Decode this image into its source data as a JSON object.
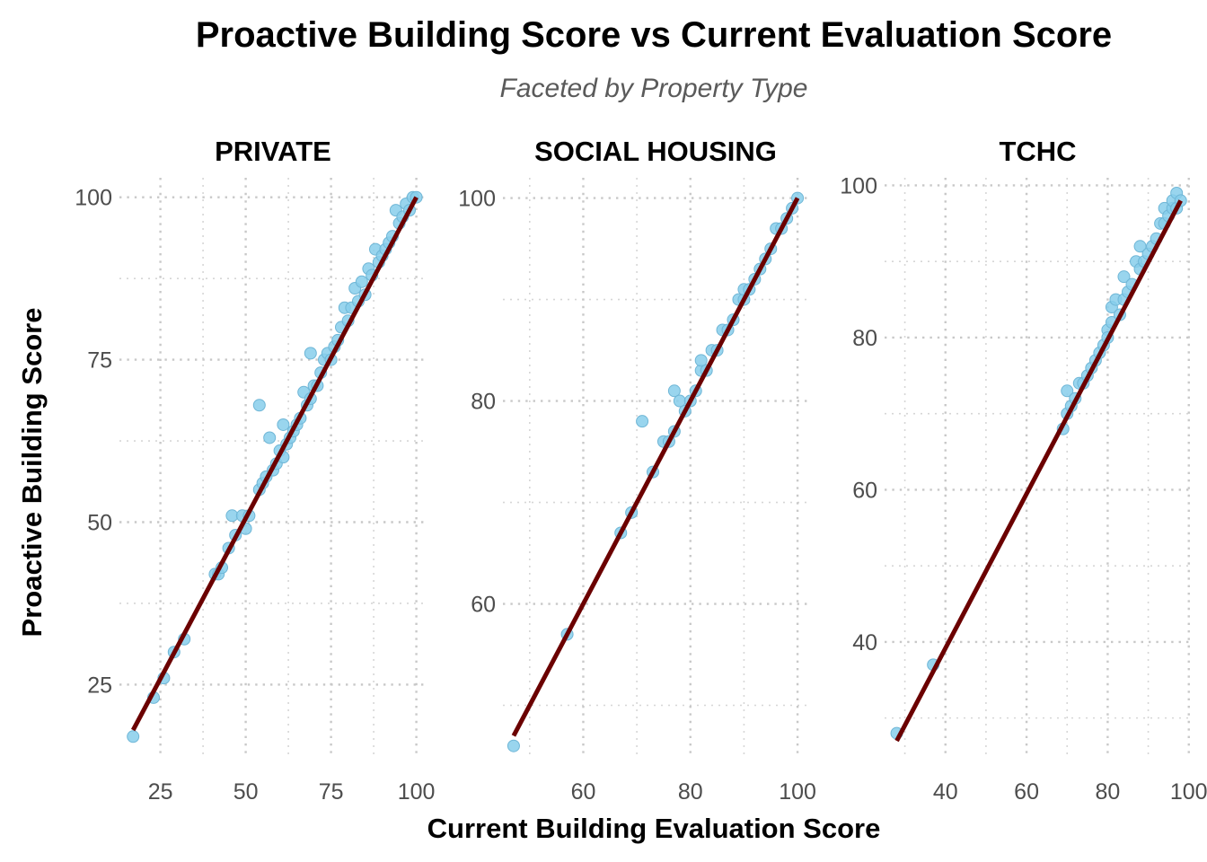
{
  "chart_data": {
    "type": "scatter",
    "title": "Proactive Building Score vs Current Evaluation Score",
    "subtitle": "Faceted by Property Type",
    "xlabel": "Current Building Evaluation Score",
    "ylabel": "Proactive Building Score",
    "grid": true,
    "colors": {
      "points": "#87CEEB",
      "fit_line": "#6b0000"
    },
    "facets": [
      {
        "name": "PRIVATE",
        "xlim": [
          13,
          103
        ],
        "ylim": [
          14,
          103
        ],
        "x_ticks": [
          25,
          50,
          75,
          100
        ],
        "y_ticks": [
          25,
          50,
          75,
          100
        ],
        "fit_line": [
          [
            17,
            18
          ],
          [
            100,
            100
          ]
        ],
        "points": [
          [
            17,
            17
          ],
          [
            23,
            23
          ],
          [
            26,
            26
          ],
          [
            29,
            30
          ],
          [
            32,
            32
          ],
          [
            41,
            42
          ],
          [
            42,
            42
          ],
          [
            43,
            43
          ],
          [
            45,
            46
          ],
          [
            46,
            51
          ],
          [
            47,
            48
          ],
          [
            49,
            51
          ],
          [
            50,
            49
          ],
          [
            51,
            51
          ],
          [
            54,
            68
          ],
          [
            54,
            55
          ],
          [
            55,
            56
          ],
          [
            56,
            57
          ],
          [
            57,
            63
          ],
          [
            58,
            58
          ],
          [
            59,
            59
          ],
          [
            60,
            61
          ],
          [
            61,
            65
          ],
          [
            61,
            60
          ],
          [
            62,
            62
          ],
          [
            63,
            63
          ],
          [
            64,
            64
          ],
          [
            65,
            65
          ],
          [
            66,
            66
          ],
          [
            67,
            70
          ],
          [
            68,
            68
          ],
          [
            69,
            76
          ],
          [
            69,
            69
          ],
          [
            70,
            71
          ],
          [
            71,
            71
          ],
          [
            72,
            73
          ],
          [
            73,
            75
          ],
          [
            74,
            76
          ],
          [
            75,
            75
          ],
          [
            76,
            77
          ],
          [
            77,
            78
          ],
          [
            78,
            80
          ],
          [
            79,
            83
          ],
          [
            80,
            81
          ],
          [
            81,
            83
          ],
          [
            82,
            86
          ],
          [
            83,
            84
          ],
          [
            84,
            87
          ],
          [
            85,
            85
          ],
          [
            86,
            89
          ],
          [
            87,
            88
          ],
          [
            88,
            92
          ],
          [
            89,
            90
          ],
          [
            90,
            91
          ],
          [
            91,
            92
          ],
          [
            92,
            93
          ],
          [
            93,
            94
          ],
          [
            94,
            98
          ],
          [
            95,
            96
          ],
          [
            96,
            97
          ],
          [
            97,
            99
          ],
          [
            98,
            98
          ],
          [
            99,
            100
          ],
          [
            100,
            100
          ]
        ]
      },
      {
        "name": "SOCIAL HOUSING",
        "xlim": [
          45,
          102
        ],
        "ylim": [
          45,
          102
        ],
        "x_ticks": [
          60,
          80,
          100
        ],
        "y_ticks": [
          60,
          80,
          100
        ],
        "fit_line": [
          [
            47,
            47
          ],
          [
            100,
            100
          ]
        ],
        "points": [
          [
            47,
            46
          ],
          [
            57,
            57
          ],
          [
            67,
            67
          ],
          [
            69,
            69
          ],
          [
            71,
            78
          ],
          [
            73,
            73
          ],
          [
            75,
            76
          ],
          [
            76,
            76
          ],
          [
            77,
            77
          ],
          [
            77,
            81
          ],
          [
            78,
            80
          ],
          [
            79,
            79
          ],
          [
            80,
            80
          ],
          [
            81,
            81
          ],
          [
            82,
            83
          ],
          [
            82,
            84
          ],
          [
            83,
            83
          ],
          [
            84,
            85
          ],
          [
            85,
            85
          ],
          [
            86,
            87
          ],
          [
            87,
            87
          ],
          [
            88,
            88
          ],
          [
            89,
            90
          ],
          [
            90,
            90
          ],
          [
            90,
            91
          ],
          [
            91,
            91
          ],
          [
            92,
            92
          ],
          [
            93,
            93
          ],
          [
            94,
            94
          ],
          [
            95,
            95
          ],
          [
            96,
            97
          ],
          [
            97,
            97
          ],
          [
            98,
            98
          ],
          [
            99,
            99
          ],
          [
            100,
            100
          ]
        ]
      },
      {
        "name": "TCHC",
        "xlim": [
          25,
          100.5
        ],
        "ylim": [
          25,
          101
        ],
        "x_ticks": [
          40,
          60,
          80,
          100
        ],
        "y_ticks": [
          40,
          60,
          80,
          100
        ],
        "fit_line": [
          [
            28,
            27
          ],
          [
            98,
            98
          ]
        ],
        "points": [
          [
            28,
            28
          ],
          [
            37,
            37
          ],
          [
            69,
            68
          ],
          [
            70,
            73
          ],
          [
            70,
            70
          ],
          [
            71,
            71
          ],
          [
            72,
            72
          ],
          [
            73,
            74
          ],
          [
            74,
            74
          ],
          [
            75,
            75
          ],
          [
            76,
            76
          ],
          [
            77,
            77
          ],
          [
            78,
            78
          ],
          [
            79,
            79
          ],
          [
            80,
            81
          ],
          [
            80,
            80
          ],
          [
            81,
            84
          ],
          [
            81,
            82
          ],
          [
            82,
            85
          ],
          [
            83,
            83
          ],
          [
            84,
            88
          ],
          [
            84,
            85
          ],
          [
            85,
            86
          ],
          [
            86,
            87
          ],
          [
            87,
            90
          ],
          [
            88,
            92
          ],
          [
            88,
            89
          ],
          [
            89,
            90
          ],
          [
            90,
            91
          ],
          [
            91,
            92
          ],
          [
            92,
            93
          ],
          [
            93,
            95
          ],
          [
            94,
            97
          ],
          [
            94,
            95
          ],
          [
            95,
            96
          ],
          [
            96,
            97
          ],
          [
            96,
            98
          ],
          [
            97,
            99
          ],
          [
            97,
            97
          ],
          [
            98,
            98
          ]
        ]
      }
    ]
  }
}
